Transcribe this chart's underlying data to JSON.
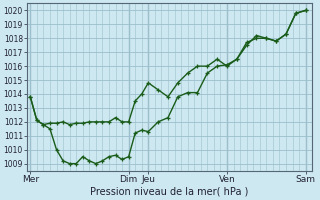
{
  "xlabel": "Pression niveau de la mer( hPa )",
  "bg_color": "#cde8f0",
  "grid_color": "#9bbfcc",
  "line_color": "#1a5c1a",
  "ylim": [
    1008.5,
    1020.5
  ],
  "yticks": [
    1009,
    1010,
    1011,
    1012,
    1013,
    1014,
    1015,
    1016,
    1017,
    1018,
    1019,
    1020
  ],
  "day_labels": [
    "Mer",
    "Dim",
    "Jeu",
    "Ven",
    "Sam"
  ],
  "day_x": [
    0,
    60,
    72,
    120,
    168
  ],
  "xlim": [
    -2,
    172
  ],
  "line1_x": [
    0,
    4,
    8,
    12,
    16,
    20,
    24,
    28,
    32,
    36,
    40,
    44,
    48,
    52,
    56,
    60,
    64,
    68,
    72,
    78,
    84,
    90,
    96,
    102,
    108,
    114,
    120,
    126,
    132,
    138,
    144,
    150,
    156,
    162,
    168
  ],
  "line1_y": [
    1013.8,
    1012.1,
    1011.8,
    1011.9,
    1011.9,
    1012.0,
    1011.8,
    1011.9,
    1011.9,
    1012.0,
    1012.0,
    1012.0,
    1012.0,
    1012.3,
    1012.0,
    1012.0,
    1013.5,
    1014.0,
    1014.8,
    1014.3,
    1013.8,
    1014.8,
    1015.5,
    1016.0,
    1016.0,
    1016.5,
    1016.0,
    1016.5,
    1017.5,
    1018.2,
    1018.0,
    1017.8,
    1018.3,
    1019.8,
    1020.0
  ],
  "line2_x": [
    0,
    4,
    8,
    12,
    16,
    20,
    24,
    28,
    32,
    36,
    40,
    44,
    48,
    52,
    56,
    60,
    64,
    68,
    72,
    78,
    84,
    90,
    96,
    102,
    108,
    114,
    120,
    126,
    132,
    138,
    144,
    150,
    156,
    162,
    168
  ],
  "line2_y": [
    1013.8,
    1012.1,
    1011.8,
    1011.5,
    1010.0,
    1009.2,
    1009.0,
    1009.0,
    1009.5,
    1009.2,
    1009.0,
    1009.2,
    1009.5,
    1009.6,
    1009.3,
    1009.5,
    1011.2,
    1011.4,
    1011.3,
    1012.0,
    1012.3,
    1013.8,
    1014.1,
    1014.1,
    1015.5,
    1016.0,
    1016.1,
    1016.5,
    1017.7,
    1018.0,
    1018.0,
    1017.8,
    1018.3,
    1019.8,
    1020.0
  ]
}
